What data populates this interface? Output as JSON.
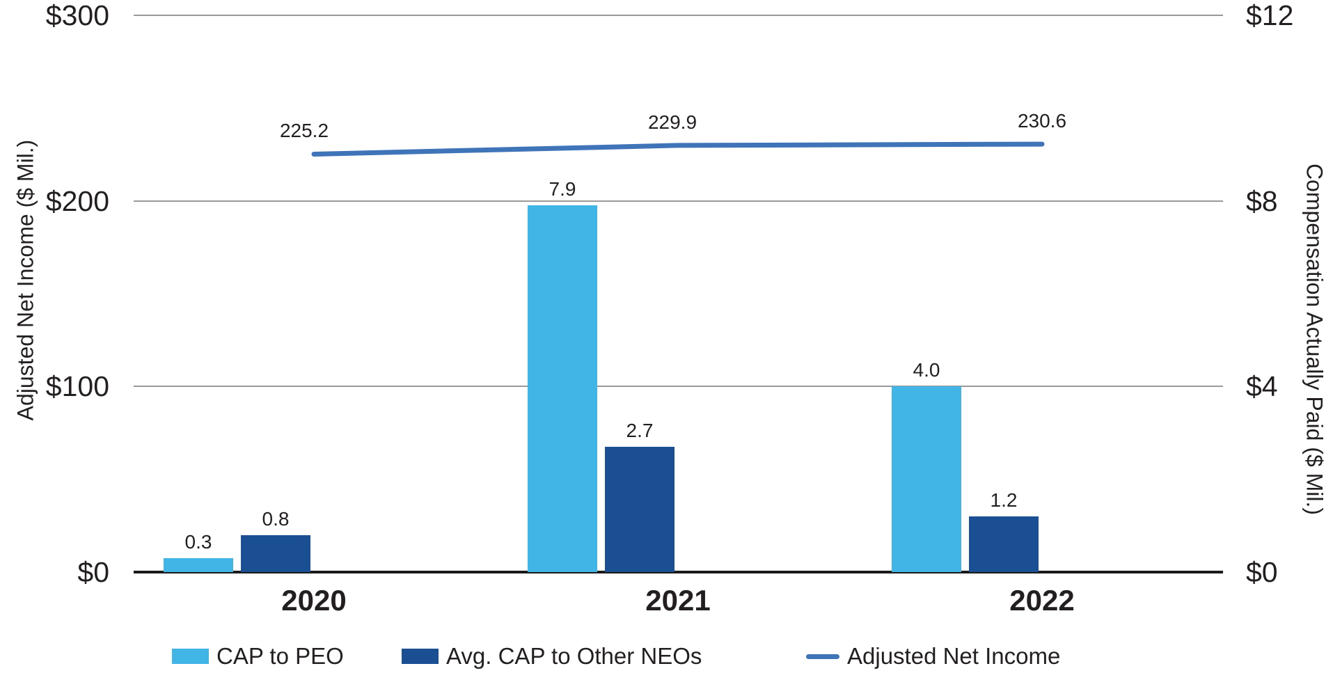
{
  "chart_data": {
    "type": "combo-bar-line",
    "title": "",
    "categories": [
      "2020",
      "2021",
      "2022"
    ],
    "series": [
      {
        "name": "CAP to PEO",
        "chart_type": "bar",
        "axis": "right",
        "values": [
          0.3,
          7.9,
          4.0
        ],
        "labels": [
          "0.3",
          "7.9",
          "4.0"
        ],
        "color": "#41B6E6"
      },
      {
        "name": "Avg. CAP to Other NEOs",
        "chart_type": "bar",
        "axis": "right",
        "values": [
          0.8,
          2.7,
          1.2
        ],
        "labels": [
          "0.8",
          "2.7",
          "1.2"
        ],
        "color": "#1B4F94"
      },
      {
        "name": "Adjusted Net Income",
        "chart_type": "line",
        "axis": "left",
        "values": [
          225.2,
          229.9,
          230.6
        ],
        "labels": [
          "225.2",
          "229.9",
          "230.6"
        ],
        "color": "#3F74B9"
      }
    ],
    "left_axis": {
      "title": "Adjusted Net Income ($ Mil.)",
      "tick_labels": [
        "$0",
        "$100",
        "$200",
        "$300"
      ],
      "tick_values": [
        0,
        100,
        200,
        300
      ],
      "range": [
        0,
        300
      ]
    },
    "right_axis": {
      "title": "Compensation Actually Paid ($ Mil.)",
      "tick_labels": [
        "$0",
        "$4",
        "$8",
        "$12"
      ],
      "tick_values": [
        0,
        4,
        8,
        12
      ],
      "range": [
        0,
        12
      ]
    },
    "legend": {
      "position": "bottom",
      "entries": [
        "CAP to PEO",
        "Avg. CAP to Other NEOs",
        "Adjusted Net Income"
      ]
    },
    "grid": "horizontal"
  },
  "colors": {
    "bar_light_blue": "#41B6E6",
    "bar_dark_blue": "#1B4F94",
    "line_blue": "#3F74B9",
    "text": "#231F20",
    "gridline": "#999999",
    "axis_line": "#1A1A1A",
    "background": "#FFFFFF"
  }
}
